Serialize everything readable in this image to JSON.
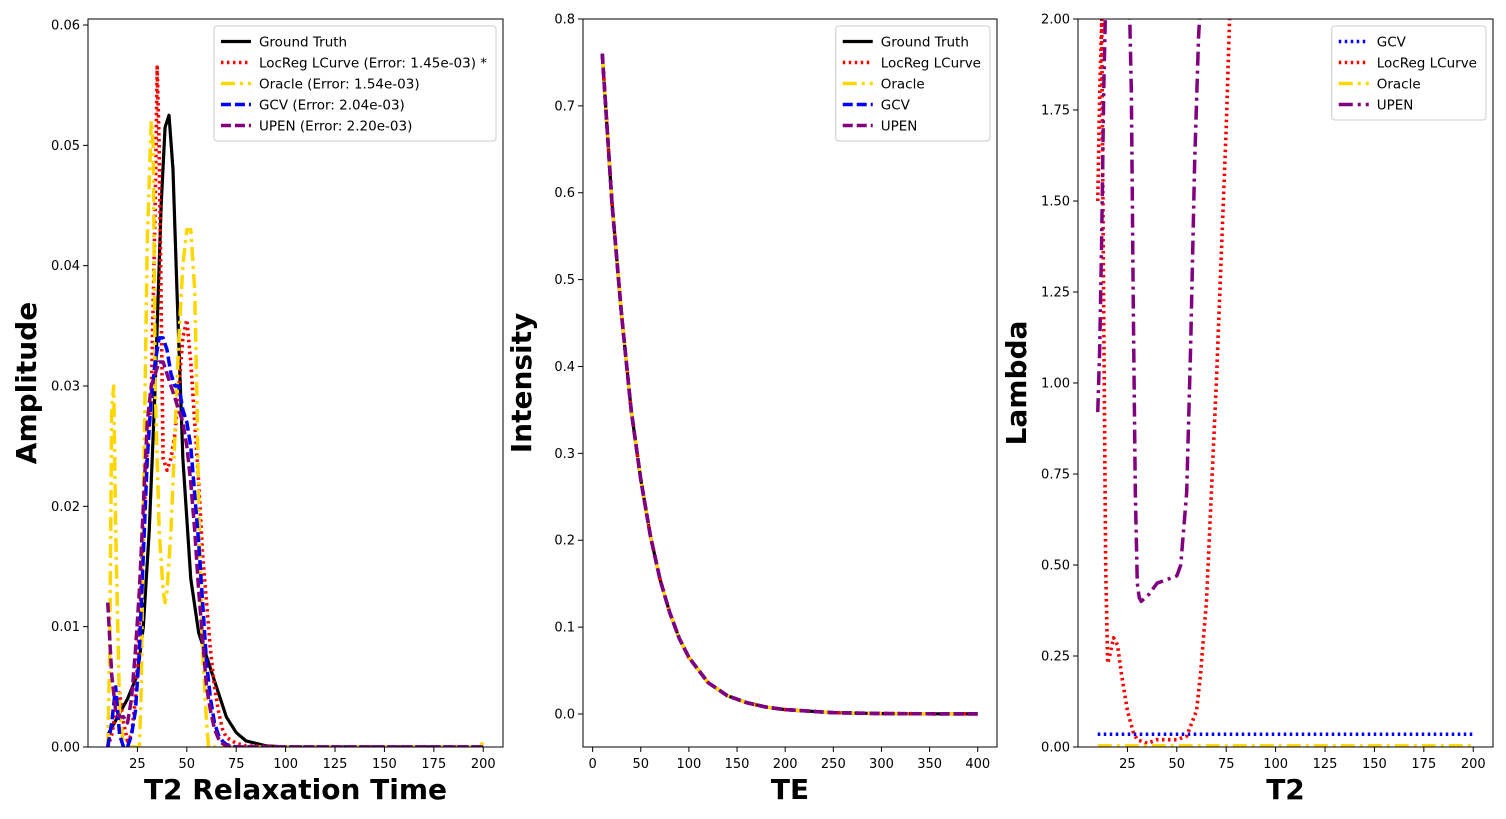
{
  "chart_data": [
    {
      "type": "line",
      "xlabel": "T2 Relaxation Time",
      "ylabel": "Amplitude",
      "xlim": [
        0,
        210
      ],
      "ylim": [
        0,
        0.0605
      ],
      "xticks": [
        25,
        50,
        75,
        100,
        125,
        150,
        175,
        200
      ],
      "yticks": [
        0.0,
        0.01,
        0.02,
        0.03,
        0.04,
        0.05,
        0.06
      ],
      "ytick_decimals": 2,
      "legend_position": "top-right",
      "series": [
        {
          "name": "Ground Truth",
          "color": "#000000",
          "style": "solid",
          "x": [
            10,
            15,
            20,
            25,
            28,
            31,
            34,
            37,
            39,
            41,
            43,
            45,
            48,
            52,
            56,
            60,
            65,
            70,
            75,
            80,
            90,
            100,
            120,
            150,
            200
          ],
          "y": [
            0.001,
            0.0025,
            0.004,
            0.006,
            0.01,
            0.018,
            0.03,
            0.045,
            0.0515,
            0.0525,
            0.048,
            0.038,
            0.024,
            0.014,
            0.0095,
            0.0075,
            0.005,
            0.0025,
            0.0012,
            0.0005,
            0.0001,
            0,
            0,
            0,
            0
          ]
        },
        {
          "name": "LocReg LCurve (Error: 1.45e-03) *",
          "color": "#ff0000",
          "style": "dotted",
          "x": [
            10,
            12,
            14,
            16,
            18,
            20,
            22,
            24,
            26,
            28,
            30,
            32,
            34,
            35,
            36,
            38,
            40,
            42,
            44,
            46,
            48,
            50,
            52,
            54,
            56,
            58,
            60,
            62,
            64,
            66,
            68,
            70,
            75,
            80,
            100,
            150,
            200
          ],
          "y": [
            0,
            0.001,
            0.003,
            0.0045,
            0.002,
            0.0005,
            0.001,
            0.004,
            0.01,
            0.018,
            0.025,
            0.029,
            0.045,
            0.0565,
            0.05,
            0.024,
            0.023,
            0.024,
            0.026,
            0.03,
            0.034,
            0.0355,
            0.032,
            0.027,
            0.022,
            0.016,
            0.012,
            0.008,
            0.005,
            0.003,
            0.0015,
            0.0008,
            0.0003,
            0.0001,
            0,
            0,
            0
          ]
        },
        {
          "name": "Oracle (Error: 1.54e-03)",
          "color": "#ffd700",
          "style": "dashdot",
          "x": [
            10,
            11,
            12,
            13,
            14,
            16,
            18,
            20,
            22,
            24,
            26,
            27,
            28,
            30,
            32,
            33,
            34,
            36,
            38,
            39,
            40,
            42,
            44,
            46,
            48,
            50,
            52,
            54,
            55,
            56,
            58,
            60,
            61,
            63,
            65,
            70,
            80,
            100,
            150,
            199,
            200
          ],
          "y": [
            0,
            0.008,
            0.028,
            0.03,
            0.018,
            0.003,
            0,
            0,
            0,
            0,
            0,
            0.005,
            0.02,
            0.042,
            0.052,
            0.05,
            0.03,
            0.018,
            0.013,
            0.012,
            0.013,
            0.018,
            0.026,
            0.034,
            0.04,
            0.043,
            0.043,
            0.038,
            0.03,
            0.02,
            0.008,
            0.002,
            0,
            0,
            0,
            0,
            0,
            0,
            0,
            0,
            0.0008
          ]
        },
        {
          "name": "GCV (Error: 2.04e-03)",
          "color": "#0000ff",
          "style": "dashed",
          "x": [
            10,
            12,
            14,
            16,
            18,
            20,
            22,
            24,
            26,
            28,
            30,
            32,
            34,
            36,
            38,
            40,
            42,
            44,
            46,
            48,
            50,
            52,
            54,
            56,
            58,
            60,
            62,
            64,
            66,
            68,
            70,
            75,
            80,
            100,
            150,
            200
          ],
          "y": [
            0,
            0.002,
            0.005,
            0.001,
            0,
            0,
            0.001,
            0.003,
            0.008,
            0.016,
            0.024,
            0.029,
            0.032,
            0.034,
            0.034,
            0.033,
            0.031,
            0.03,
            0.03,
            0.028,
            0.027,
            0.025,
            0.021,
            0.017,
            0.012,
            0.007,
            0.004,
            0.002,
            0.001,
            0.0005,
            0.0002,
            0,
            0,
            0,
            0,
            0
          ]
        },
        {
          "name": "UPEN (Error: 2.20e-03)",
          "color": "#800080",
          "style": "dashed",
          "x": [
            10,
            12,
            14,
            16,
            18,
            20,
            22,
            24,
            26,
            28,
            30,
            32,
            34,
            36,
            38,
            40,
            42,
            44,
            46,
            48,
            50,
            52,
            54,
            56,
            58,
            60,
            62,
            64,
            66,
            68,
            70,
            75,
            80,
            100,
            150,
            200
          ],
          "y": [
            0.012,
            0.006,
            0.003,
            0.0025,
            0.0025,
            0.002,
            0.004,
            0.008,
            0.013,
            0.02,
            0.027,
            0.03,
            0.031,
            0.032,
            0.032,
            0.031,
            0.03,
            0.029,
            0.028,
            0.027,
            0.025,
            0.022,
            0.018,
            0.013,
            0.009,
            0.005,
            0.003,
            0.0015,
            0.0007,
            0.0003,
            0.0001,
            0,
            0,
            0,
            0,
            0
          ]
        }
      ]
    },
    {
      "type": "line",
      "xlabel": "TE",
      "ylabel": "Intensity",
      "xlim": [
        -10,
        420
      ],
      "ylim": [
        -0.038,
        0.8
      ],
      "xticks": [
        0,
        50,
        100,
        150,
        200,
        250,
        300,
        350,
        400
      ],
      "yticks": [
        0.0,
        0.1,
        0.2,
        0.3,
        0.4,
        0.5,
        0.6,
        0.7,
        0.8
      ],
      "ytick_decimals": 1,
      "legend_position": "top-right",
      "series": [
        {
          "name": "Ground Truth",
          "color": "#000000",
          "style": "solid",
          "x": [
            10,
            20,
            30,
            40,
            50,
            60,
            70,
            80,
            90,
            100,
            120,
            140,
            160,
            180,
            200,
            250,
            300,
            350,
            400
          ],
          "y": [
            0.76,
            0.59,
            0.46,
            0.35,
            0.27,
            0.205,
            0.155,
            0.117,
            0.087,
            0.065,
            0.036,
            0.021,
            0.013,
            0.008,
            0.005,
            0.0015,
            0.0005,
            0.0002,
            0.0001
          ]
        },
        {
          "name": "LocReg LCurve",
          "color": "#ff0000",
          "style": "dotted",
          "x": [
            10,
            20,
            30,
            40,
            50,
            60,
            70,
            80,
            90,
            100,
            120,
            140,
            160,
            180,
            200,
            250,
            300,
            350,
            400
          ],
          "y": [
            0.76,
            0.59,
            0.46,
            0.35,
            0.27,
            0.205,
            0.155,
            0.117,
            0.087,
            0.065,
            0.036,
            0.021,
            0.013,
            0.008,
            0.005,
            0.0015,
            0.0005,
            0.0002,
            0.0001
          ]
        },
        {
          "name": "Oracle",
          "color": "#ffd700",
          "style": "dashdot",
          "x": [
            10,
            20,
            30,
            40,
            50,
            60,
            70,
            80,
            90,
            100,
            120,
            140,
            160,
            180,
            200,
            250,
            300,
            350,
            400
          ],
          "y": [
            0.76,
            0.59,
            0.46,
            0.35,
            0.27,
            0.205,
            0.155,
            0.117,
            0.087,
            0.065,
            0.036,
            0.021,
            0.013,
            0.008,
            0.005,
            0.0015,
            0.0005,
            0.0002,
            0.0001
          ]
        },
        {
          "name": "GCV",
          "color": "#0000ff",
          "style": "dashed",
          "x": [
            10,
            20,
            30,
            40,
            50,
            60,
            70,
            80,
            90,
            100,
            120,
            140,
            160,
            180,
            200,
            250,
            300,
            350,
            400
          ],
          "y": [
            0.76,
            0.59,
            0.46,
            0.35,
            0.27,
            0.205,
            0.155,
            0.117,
            0.087,
            0.065,
            0.036,
            0.021,
            0.013,
            0.008,
            0.005,
            0.0015,
            0.0005,
            0.0002,
            0.0001
          ]
        },
        {
          "name": "UPEN",
          "color": "#800080",
          "style": "dashed",
          "x": [
            10,
            20,
            30,
            40,
            50,
            60,
            70,
            80,
            90,
            100,
            120,
            140,
            160,
            180,
            200,
            250,
            300,
            350,
            400
          ],
          "y": [
            0.76,
            0.59,
            0.46,
            0.35,
            0.27,
            0.205,
            0.155,
            0.117,
            0.087,
            0.065,
            0.036,
            0.021,
            0.013,
            0.008,
            0.005,
            0.0015,
            0.0005,
            0.0002,
            0.0001
          ]
        }
      ]
    },
    {
      "type": "line",
      "xlabel": "T2",
      "ylabel": "Lambda",
      "xlim": [
        0,
        210
      ],
      "ylim": [
        0,
        2.0
      ],
      "xticks": [
        25,
        50,
        75,
        100,
        125,
        150,
        175,
        200
      ],
      "yticks": [
        0.0,
        0.25,
        0.5,
        0.75,
        1.0,
        1.25,
        1.5,
        1.75,
        2.0
      ],
      "ytick_decimals": 2,
      "legend_position": "top-right",
      "series": [
        {
          "name": "GCV",
          "color": "#0000ff",
          "style": "dotted",
          "x": [
            10,
            200
          ],
          "y": [
            0.035,
            0.035
          ]
        },
        {
          "name": "LocReg LCurve",
          "color": "#ff0000",
          "style": "dotted",
          "x": [
            10,
            11,
            12,
            13,
            14,
            15,
            16,
            18,
            20,
            22,
            25,
            28,
            30,
            35,
            40,
            45,
            50,
            55,
            60,
            62,
            65,
            70,
            75,
            77
          ],
          "y": [
            1.5,
            1.8,
            2.0,
            1.2,
            0.5,
            0.23,
            0.25,
            0.3,
            0.28,
            0.2,
            0.1,
            0.04,
            0.02,
            0.01,
            0.02,
            0.02,
            0.02,
            0.03,
            0.1,
            0.2,
            0.4,
            1.0,
            1.7,
            2.05
          ]
        },
        {
          "name": "Oracle",
          "color": "#ffd700",
          "style": "dashdot",
          "x": [
            10,
            200
          ],
          "y": [
            0.003,
            0.003
          ]
        },
        {
          "name": "UPEN",
          "color": "#800080",
          "style": "dashdot",
          "x": [
            10,
            11,
            12,
            13,
            14,
            15,
            16,
            20,
            24,
            26,
            27,
            28,
            29,
            30,
            31,
            32,
            34,
            36,
            40,
            45,
            50,
            52,
            55,
            57,
            59,
            61,
            62,
            63
          ],
          "y": [
            0.92,
            1.1,
            1.4,
            1.8,
            2.05,
            2.05,
            2.05,
            2.05,
            2.05,
            2.05,
            1.8,
            1.2,
            0.7,
            0.45,
            0.41,
            0.4,
            0.41,
            0.42,
            0.45,
            0.46,
            0.47,
            0.5,
            0.7,
            1.1,
            1.6,
            1.95,
            2.05,
            2.05
          ]
        }
      ]
    }
  ]
}
